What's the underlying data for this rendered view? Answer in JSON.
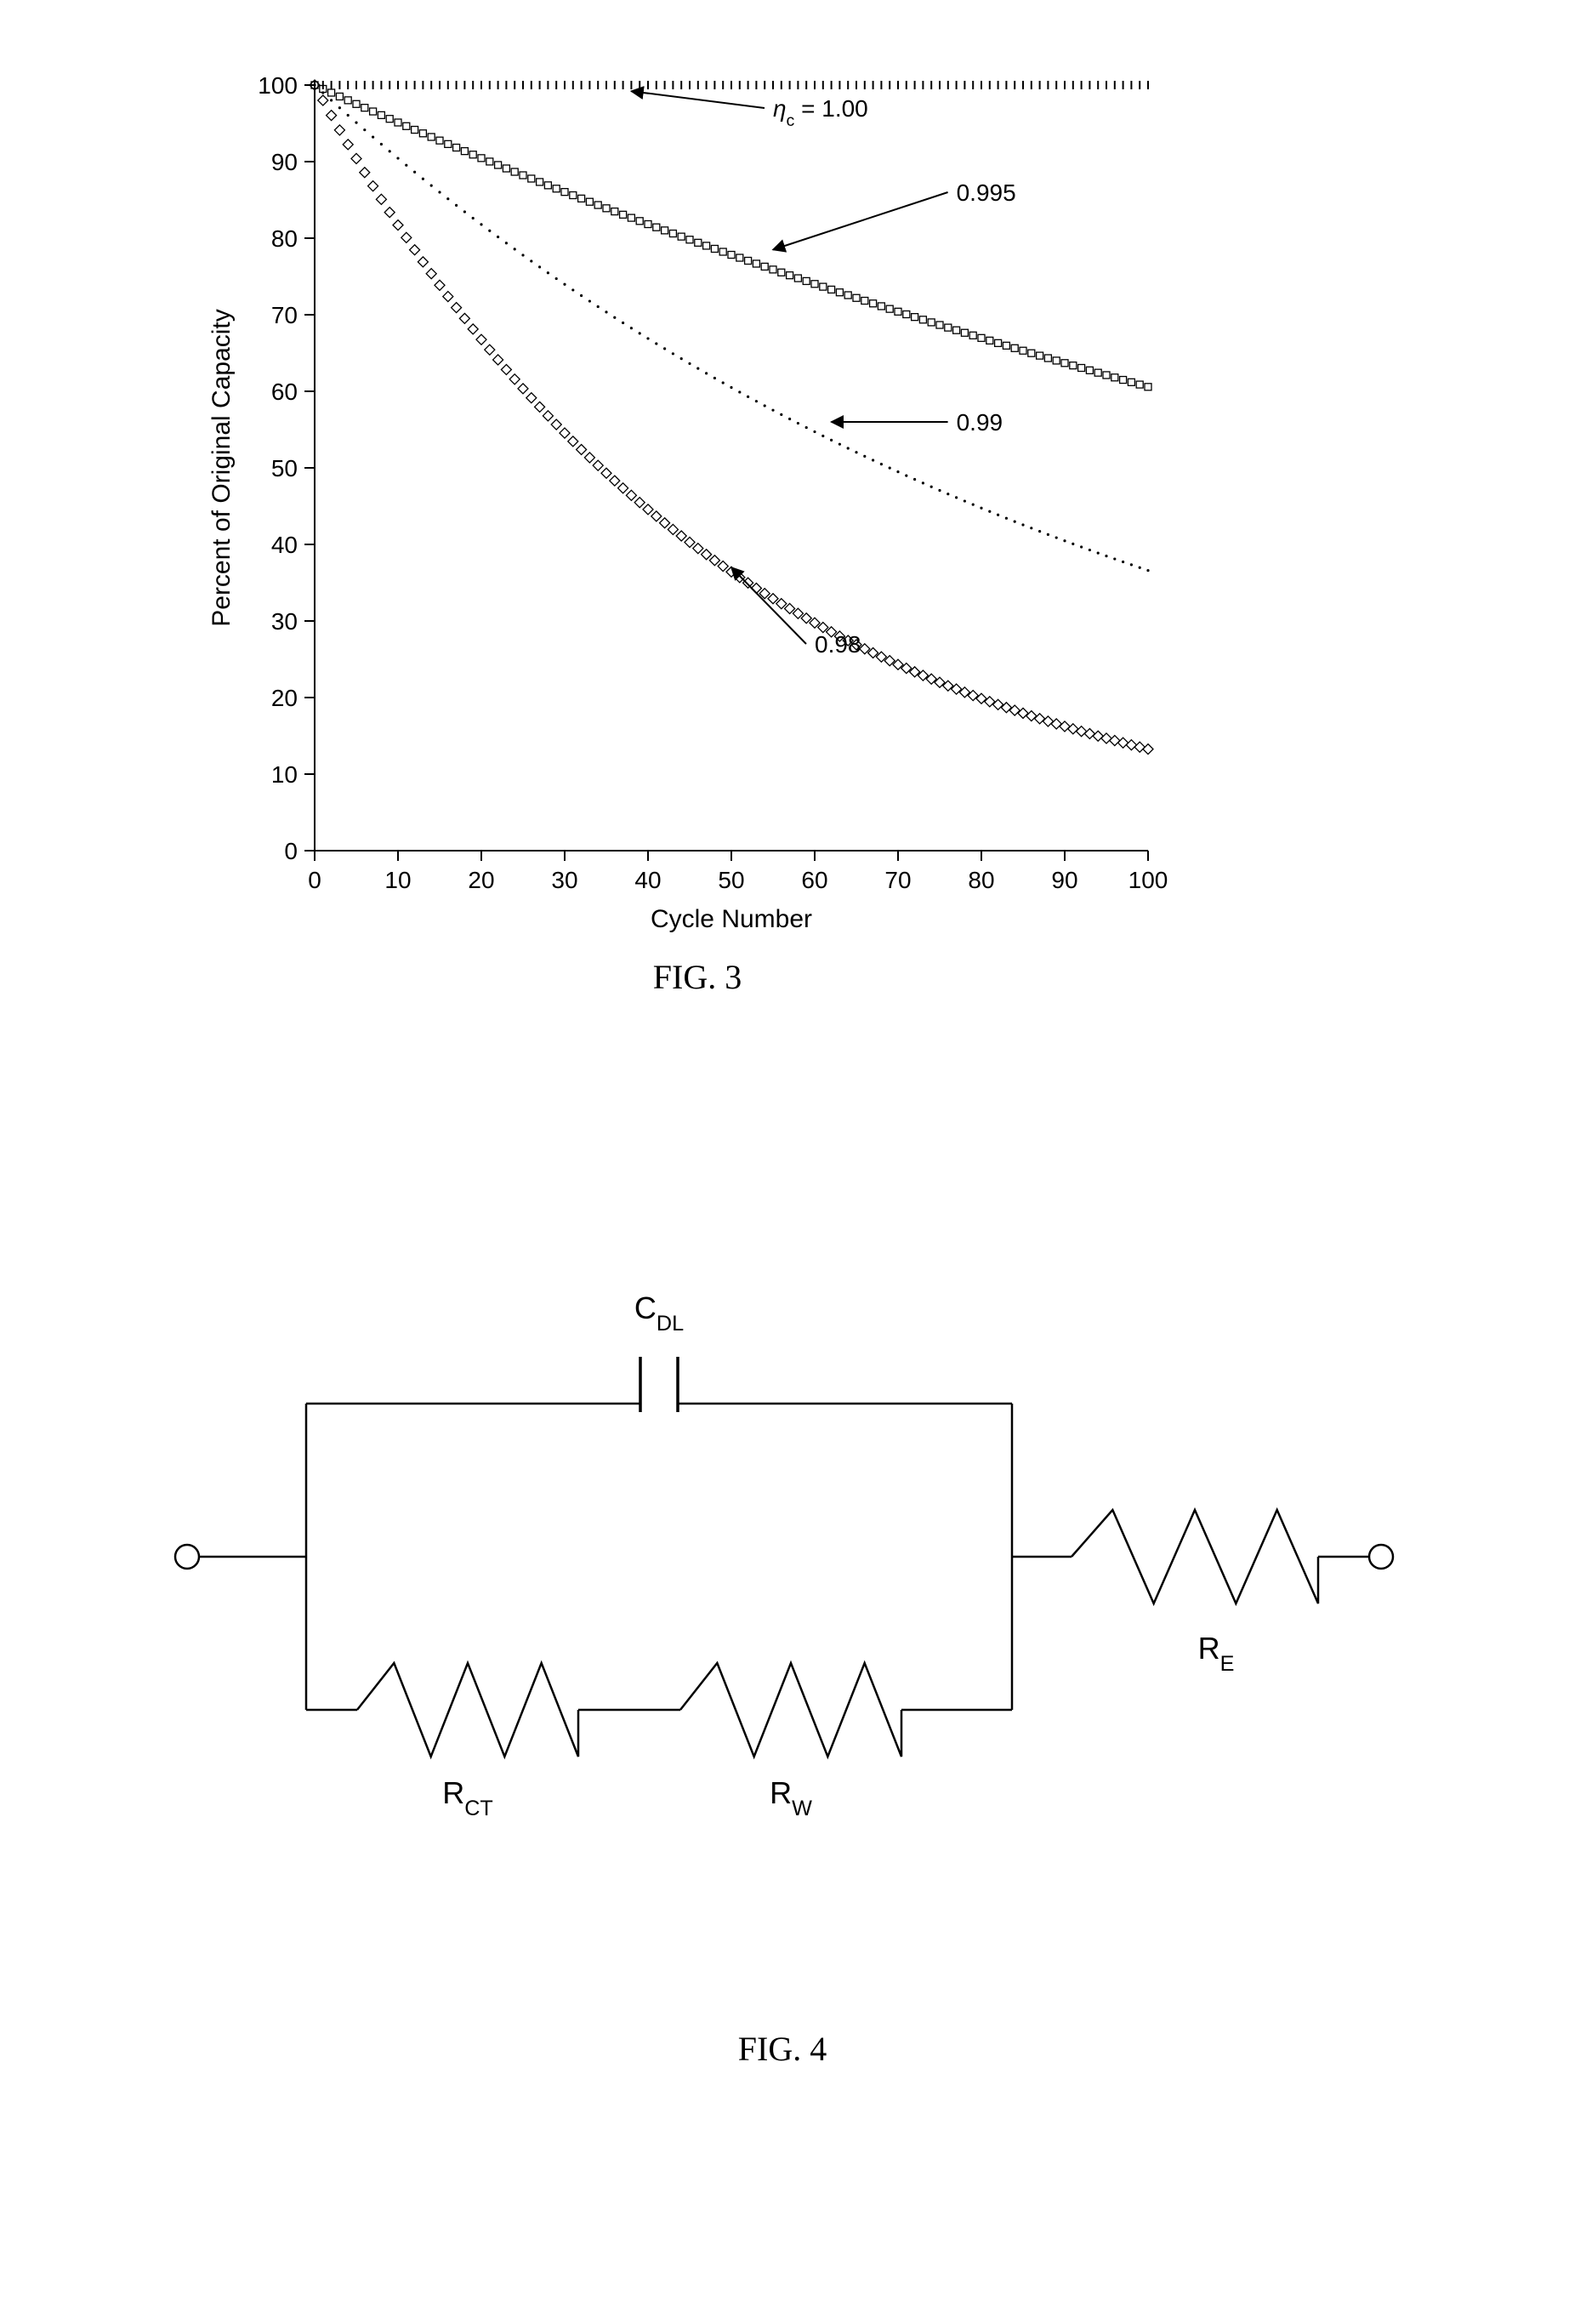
{
  "fig3": {
    "caption": "FIG. 3",
    "type": "line",
    "xlabel": "Cycle Number",
    "ylabel": "Percent of Original Capacity",
    "xlim": [
      0,
      100
    ],
    "ylim": [
      0,
      100
    ],
    "xtick_step": 10,
    "ytick_step": 10,
    "axis_color": "#000000",
    "background_color": "#ffffff",
    "label_fontsize": 30,
    "tick_fontsize": 28,
    "series": [
      {
        "label_html": "<tspan font-style='italic'>&#951;</tspan><tspan baseline-shift='sub' font-size='0.7em'>c</tspan> = 1.00",
        "eta": 1.0,
        "marker": "tick",
        "color": "#000000",
        "label_x": 55,
        "label_y": 97,
        "arrow_to_x": 38,
        "arrow_to_y": 99.2
      },
      {
        "label_html": "0.995",
        "eta": 0.995,
        "marker": "square",
        "color": "#000000",
        "label_x": 77,
        "label_y": 86,
        "arrow_to_x": 55,
        "arrow_to_y": 78.5
      },
      {
        "label_html": "0.99",
        "eta": 0.99,
        "marker": "dot",
        "color": "#000000",
        "label_x": 77,
        "label_y": 56,
        "arrow_to_x": 62,
        "arrow_to_y": 56
      },
      {
        "label_html": "0.98",
        "eta": 0.98,
        "marker": "diamond",
        "color": "#000000",
        "label_x": 60,
        "label_y": 27,
        "arrow_to_x": 50,
        "arrow_to_y": 37
      }
    ],
    "n_points": 101
  },
  "fig4": {
    "caption": "FIG. 4",
    "type": "circuit",
    "line_color": "#000000",
    "line_width": 2.5,
    "label_fontsize": 36,
    "labels": {
      "cdl_html": "C<tspan baseline-shift='sub' font-size='0.7em'>DL</tspan>",
      "re_html": "R<tspan baseline-shift='sub' font-size='0.7em'>E</tspan>",
      "rct_html": "R<tspan baseline-shift='sub' font-size='0.7em'>CT</tspan>",
      "rw_html": "R<tspan baseline-shift='sub' font-size='0.7em'>W</tspan>"
    }
  }
}
